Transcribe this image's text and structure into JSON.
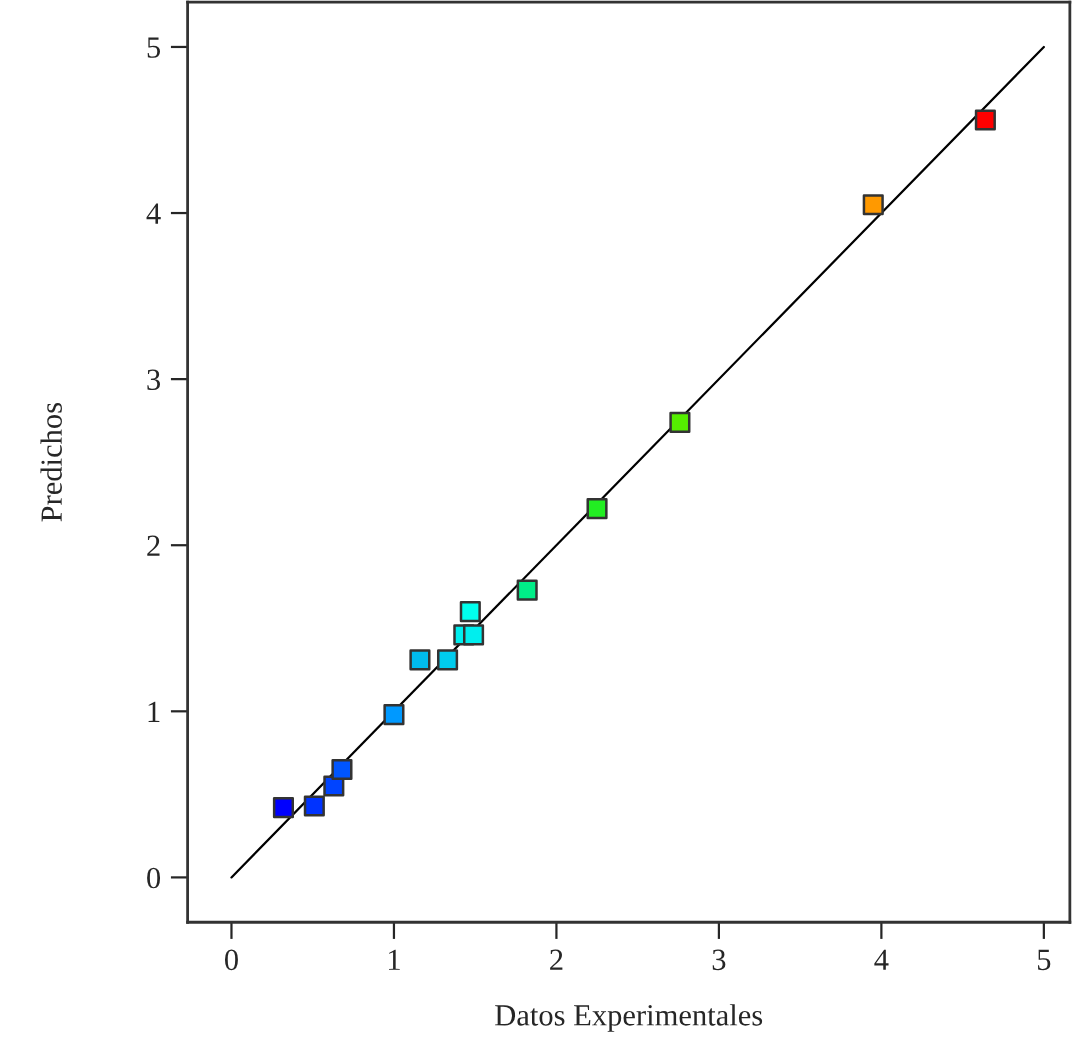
{
  "chart_data": {
    "type": "scatter",
    "xlabel": "Datos Experimentales",
    "ylabel": "Predichos",
    "xlim": [
      -0.27,
      5.16
    ],
    "ylim": [
      -0.27,
      5.27
    ],
    "xticks": [
      0,
      1,
      2,
      3,
      4,
      5
    ],
    "yticks": [
      0,
      1,
      2,
      3,
      4,
      5
    ],
    "grid": false,
    "series": [
      {
        "marker": "square",
        "x": [
          0.32,
          0.51,
          0.63,
          0.68,
          1.0,
          1.16,
          1.33,
          1.43,
          1.49,
          1.47,
          1.82,
          2.25,
          2.76,
          3.95,
          4.64
        ],
        "values": [
          0.42,
          0.43,
          0.55,
          0.65,
          0.98,
          1.31,
          1.31,
          1.46,
          1.46,
          1.6,
          1.73,
          2.22,
          2.74,
          4.05,
          4.56
        ],
        "colors": [
          "#0000ff",
          "#0033ff",
          "#0044ff",
          "#0055ff",
          "#0099ff",
          "#00bbee",
          "#00ccee",
          "#00eeee",
          "#00eeee",
          "#00ffee",
          "#00ee88",
          "#22ee22",
          "#55ee00",
          "#ff9900",
          "#ff0000"
        ]
      },
      {
        "type": "line",
        "x": [
          0,
          5
        ],
        "values": [
          0,
          5
        ],
        "color": "#000000"
      }
    ]
  }
}
